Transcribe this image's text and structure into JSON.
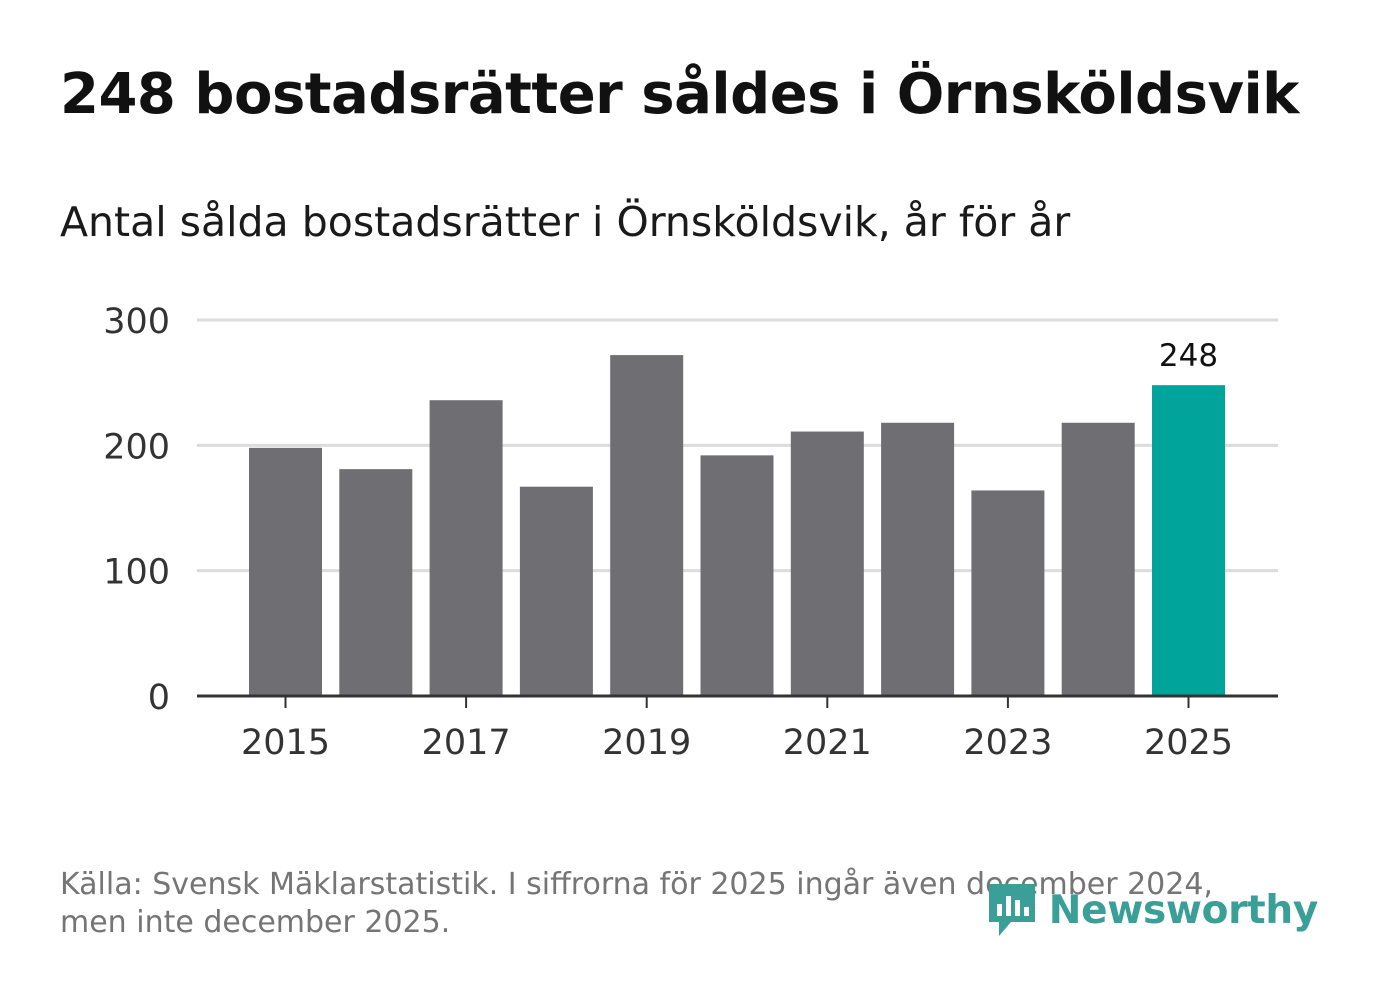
{
  "title": "248 bostadsrätter såldes i Örnsköldsvik",
  "subtitle": "Antal sålda bostadsrätter i Örnsköldsvik, år för år",
  "footnote": {
    "line1": "Källa: Svensk Mäklarstatistik. I siffrorna för 2025 ingår även december 2024,",
    "line2": "men inte december 2025."
  },
  "logo": {
    "text": "Newsworthy",
    "icon": "newsworthy-bars-icon"
  },
  "colors": {
    "bar": "#6f6e73",
    "highlight": "#00a49a",
    "grid": "#dcdcdc",
    "axis": "#333333",
    "logo": "#3a9f96"
  },
  "chart_data": {
    "type": "bar",
    "title": "Antal sålda bostadsrätter i Örnsköldsvik, år för år",
    "xlabel": "",
    "ylabel": "",
    "categories": [
      "2015",
      "2016",
      "2017",
      "2018",
      "2019",
      "2020",
      "2021",
      "2022",
      "2023",
      "2024",
      "2025"
    ],
    "values": [
      198,
      181,
      236,
      167,
      272,
      192,
      211,
      218,
      164,
      218,
      248
    ],
    "ylim": [
      0,
      300
    ],
    "yticks": [
      0,
      100,
      200,
      300
    ],
    "xtick_labels": [
      "2015",
      "2017",
      "2019",
      "2021",
      "2023",
      "2025"
    ],
    "highlight": {
      "category": "2025",
      "label": "248"
    },
    "grid": true
  }
}
